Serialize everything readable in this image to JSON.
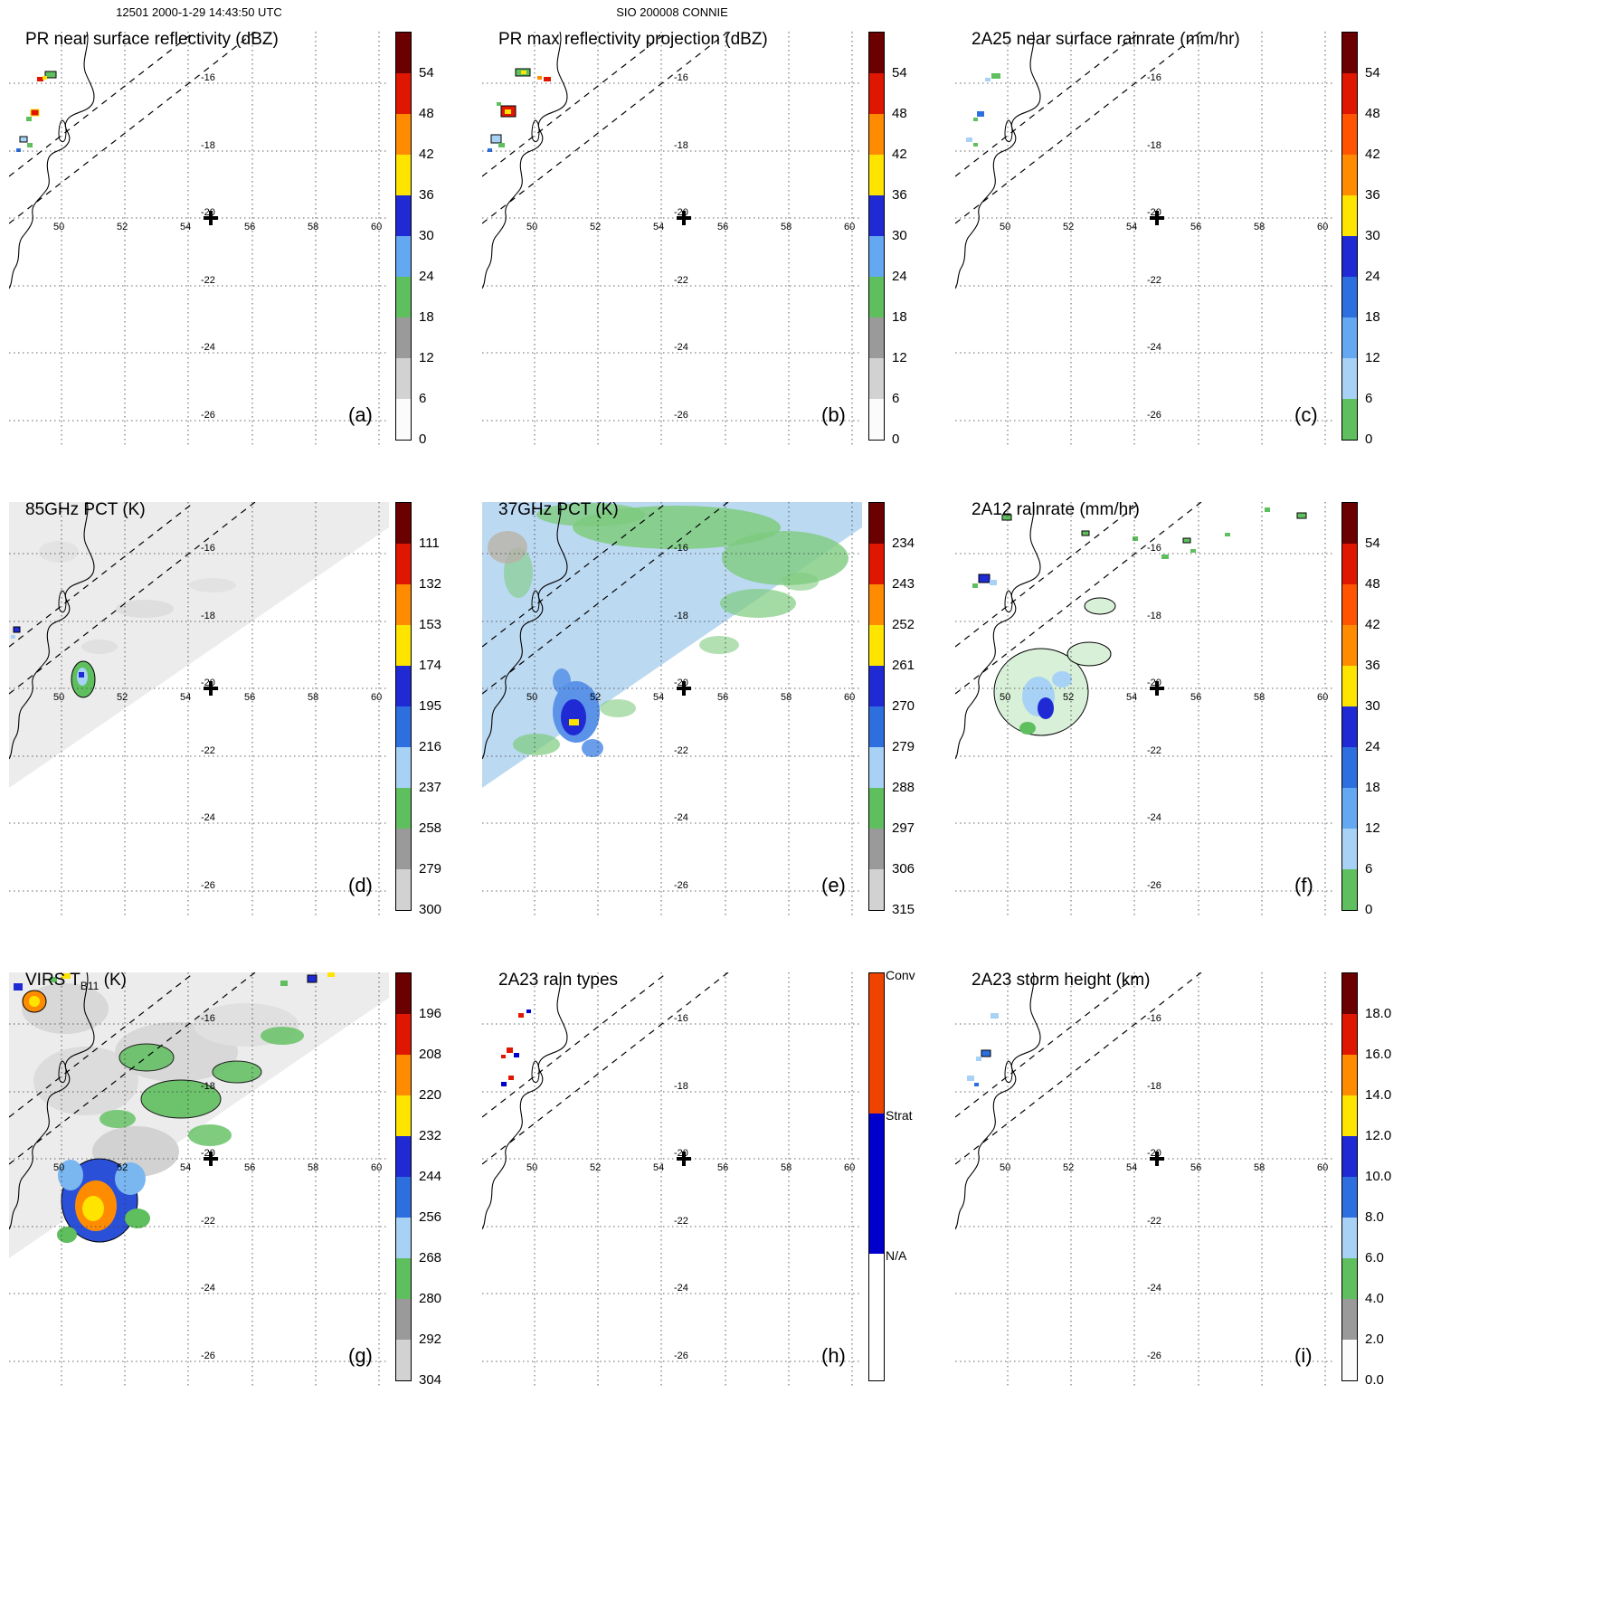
{
  "figure": {
    "header_datetime": "12501 2000-1-29 14:43:50 UTC",
    "header_storm": "SIO 200008 CONNIE"
  },
  "axes": {
    "lon_ticks": [
      "50",
      "52",
      "54",
      "56",
      "58",
      "60"
    ],
    "lat_ticks": [
      "-16",
      "-18",
      "-20",
      "-22",
      "-24",
      "-26"
    ]
  },
  "colors": {
    "maroon": "#6b0000",
    "red": "#e01700",
    "orangered": "#ff5400",
    "orange": "#ff8c00",
    "yellow": "#ffe400",
    "darkblue": "#1f2ad4",
    "blue": "#2e6fe0",
    "midblue": "#63a8f0",
    "paleblue": "#a8d2f5",
    "green": "#5fbf5f",
    "lightgreen": "#a5d9a5",
    "gray": "#9a9a9a",
    "lightgray": "#d2d2d2",
    "offwhite": "#fbfbfb",
    "swath_gray": "#ececec",
    "swath_blue": "#bcd9f2",
    "conv": "#ee4400",
    "strat": "#0000cc"
  },
  "palettes": {
    "dbz": [
      "maroon",
      "red",
      "orange",
      "yellow",
      "darkblue",
      "midblue",
      "green",
      "gray",
      "lightgray",
      "offwhite"
    ],
    "rain": [
      "maroon",
      "red",
      "orangered",
      "orange",
      "yellow",
      "darkblue",
      "blue",
      "midblue",
      "paleblue",
      "green"
    ],
    "pct": [
      "maroon",
      "red",
      "orange",
      "yellow",
      "darkblue",
      "blue",
      "paleblue",
      "green",
      "gray",
      "lightgray"
    ],
    "height": [
      "maroon",
      "red",
      "orange",
      "yellow",
      "darkblue",
      "blue",
      "paleblue",
      "green",
      "gray",
      "offwhite"
    ],
    "raintype": [
      "conv",
      "strat",
      "white"
    ]
  },
  "panels": [
    {
      "id": "a",
      "letter": "(a)",
      "title": "PR near surface reflectivity (dBZ)",
      "colorbar": {
        "type": "dbz",
        "ticks": [
          "54",
          "48",
          "42",
          "36",
          "30",
          "24",
          "18",
          "12",
          "6",
          "0"
        ]
      }
    },
    {
      "id": "b",
      "letter": "(b)",
      "title": "PR max reflectivity projection (dBZ)",
      "colorbar": {
        "type": "dbz",
        "ticks": [
          "54",
          "48",
          "42",
          "36",
          "30",
          "24",
          "18",
          "12",
          "6",
          "0"
        ]
      }
    },
    {
      "id": "c",
      "letter": "(c)",
      "title": "2A25 near surface rainrate (mm/hr)",
      "colorbar": {
        "type": "rain",
        "ticks": [
          "54",
          "48",
          "42",
          "36",
          "30",
          "24",
          "18",
          "12",
          "6",
          "0"
        ]
      }
    },
    {
      "id": "d",
      "letter": "(d)",
      "title": "85GHz PCT (K)",
      "colorbar": {
        "type": "pct",
        "ticks": [
          "111",
          "132",
          "153",
          "174",
          "195",
          "216",
          "237",
          "258",
          "279",
          "300"
        ]
      }
    },
    {
      "id": "e",
      "letter": "(e)",
      "title": "37GHz PCT (K)",
      "colorbar": {
        "type": "pct",
        "ticks": [
          "234",
          "243",
          "252",
          "261",
          "270",
          "279",
          "288",
          "297",
          "306",
          "315"
        ]
      }
    },
    {
      "id": "f",
      "letter": "(f)",
      "title": "2A12 rainrate (mm/hr)",
      "colorbar": {
        "type": "rain",
        "ticks": [
          "54",
          "48",
          "42",
          "36",
          "30",
          "24",
          "18",
          "12",
          "6",
          "0"
        ]
      }
    },
    {
      "id": "g",
      "letter": "(g)",
      "title_pre": "VIRS T",
      "title_sub": "B11",
      "title_post": " (K)",
      "colorbar": {
        "type": "pct",
        "ticks": [
          "196",
          "208",
          "220",
          "232",
          "244",
          "256",
          "268",
          "280",
          "292",
          "304"
        ]
      }
    },
    {
      "id": "h",
      "letter": "(h)",
      "title": "2A23 rain types",
      "colorbar": {
        "type": "raintype",
        "labels": [
          "Conv",
          "Strat",
          "N/A"
        ]
      }
    },
    {
      "id": "i",
      "letter": "(i)",
      "title": "2A23 storm height (km)",
      "colorbar": {
        "type": "height",
        "ticks": [
          "18.0",
          "16.0",
          "14.0",
          "12.0",
          "10.0",
          "8.0",
          "6.0",
          "4.0",
          "2.0",
          "0.0"
        ]
      }
    }
  ],
  "chart_data": {
    "type": "heatmap",
    "description": "3x3 multi-panel TRMM satellite overpass of tropical cyclone Connie (SIO 200008), orbit/time header 12501 2000-1-29 14:43:50 UTC, maps near Madagascar east coast",
    "shared_axes": {
      "lon_ticks": [
        50,
        52,
        54,
        56,
        58,
        60
      ],
      "lat_ticks": [
        -16,
        -18,
        -20,
        -22,
        -24,
        -26
      ],
      "lon_range": [
        48.3,
        60.3
      ],
      "lat_range": [
        -26.8,
        -14.5
      ],
      "grid": "dotted",
      "swath_edges": "two dashed parallel lines running SW-NE across upper-left of each map",
      "storm_center_marker": [
        54.7,
        -20.0
      ]
    },
    "panels": [
      {
        "label": "(a)",
        "title": "PR near surface reflectivity (dBZ)",
        "units": "dBZ",
        "colorbar_ticks_top_to_bottom": [
          54,
          48,
          42,
          36,
          30,
          24,
          18,
          12,
          6,
          0
        ],
        "content": "small scattered convective echo cells (18-54 dBZ, green/red/yellow pixels) near the coast around 48-50E, 14.5-16.5S; rest of PR swath echo-free"
      },
      {
        "label": "(b)",
        "title": "PR max reflectivity projection (dBZ)",
        "units": "dBZ",
        "colorbar_ticks_top_to_bottom": [
          54,
          48,
          42,
          36,
          30,
          24,
          18,
          12,
          6,
          0
        ],
        "content": "same cells as (a) but larger/stronger in the column-maximum projection, including a red core with yellow rim near 48.7E 15.3S"
      },
      {
        "label": "(c)",
        "title": "2A25 near surface rainrate (mm/hr)",
        "units": "mm/hr",
        "colorbar_ticks_top_to_bottom": [
          54,
          48,
          42,
          36,
          30,
          24,
          18,
          12,
          6,
          0
        ],
        "content": "weak rain rates (mostly <24 mm/hr, green/blue pixels) at the same scattered cells near 48-50E, 14.5-16.5S"
      },
      {
        "label": "(d)",
        "title": "85GHz PCT (K)",
        "units": "K",
        "colorbar_ticks_top_to_bottom": [
          111,
          132,
          153,
          174,
          195,
          216,
          237,
          258,
          279,
          300
        ],
        "content": "TMI swath fills the upper-left triangle with warm PCT ~280-300 K (light gray); small depressed-PCT blob (~216-237 K, green/blue) near 50.6E 19.5S and specks at swath left edge"
      },
      {
        "label": "(e)",
        "title": "37GHz PCT (K)",
        "units": "K",
        "colorbar_ticks_top_to_bottom": [
          234,
          243,
          252,
          261,
          270,
          279,
          288,
          297,
          306,
          315
        ],
        "content": "swath mostly 270-288 K (pale blue) over ocean with green ~288-297 K speckle along edges and top; cold core near 50.6E 20S reaching ~252-261 K (dark blue with yellow pixel)"
      },
      {
        "label": "(f)",
        "title": "2A12 rainrate (mm/hr)",
        "units": "mm/hr",
        "colorbar_ticks_top_to_bottom": [
          54,
          48,
          42,
          36,
          30,
          24,
          18,
          12,
          6,
          0
        ],
        "content": "broad light-rain region (green outline) around 49.5-52.5E, 19-21.5S with embedded 12-30 mm/hr blue cells; scattered small green cells along the northern swath edge"
      },
      {
        "label": "(g)",
        "title": "VIRS TB11 (K)",
        "units": "K",
        "colorbar_ticks_top_to_bottom": [
          196,
          208,
          220,
          232,
          244,
          256,
          268,
          280,
          292,
          304
        ],
        "content": "VIRS 10.8-micron brightness temperature: gray low clouds across swath, cold cloud shield near 50.5E 20.2S with very cold core ~208-220 K (orange/yellow inside blue), green ~268 K cloud patches, small cold cells at upper-left and top edge"
      },
      {
        "label": "(h)",
        "title": "2A23 rain types",
        "units": "category",
        "categories_top_to_bottom": [
          "Conv",
          "Strat",
          "N/A"
        ],
        "content": "few convective (red) and stratiform (blue) PR pixels near 48.5-49.5E, 15-16.5S; rest N/A"
      },
      {
        "label": "(i)",
        "title": "2A23 storm height (km)",
        "units": "km",
        "colorbar_ticks_top_to_bottom": [
          18.0,
          16.0,
          14.0,
          12.0,
          10.0,
          8.0,
          6.0,
          4.0,
          2.0,
          0.0
        ],
        "content": "storm heights ~6-12 km (pale blue/blue pixels) at the scattered cells near 48.5-49.5E, 15-16.5S"
      }
    ]
  }
}
